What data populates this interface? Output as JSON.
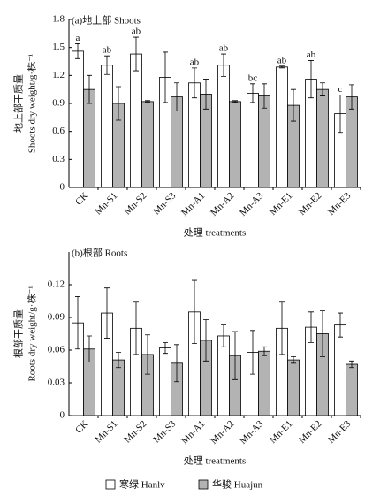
{
  "chart_data": [
    {
      "type": "bar",
      "title": "(a)地上部 Shoots",
      "ylabel": [
        "地上部干质量",
        "Shoots dry weight/g·株⁻¹"
      ],
      "xlabel": "处理 treatments",
      "categories": [
        "CK",
        "Mn-S1",
        "Mn-S2",
        "Mn-S3",
        "Mn-A1",
        "Mn-A2",
        "Mn-A3",
        "Mn-E1",
        "Mn-E2",
        "Mn-E3"
      ],
      "ylim": [
        0,
        1.8
      ],
      "yticks": [
        0,
        0.3,
        0.6,
        0.9,
        1.2,
        1.5,
        1.8
      ],
      "letters": [
        "a",
        "ab",
        "ab",
        null,
        "ab",
        "ab",
        "bc",
        "ab",
        "ab",
        "c"
      ],
      "series": [
        {
          "color": "#ffffff",
          "values": [
            1.46,
            1.31,
            1.43,
            1.18,
            1.12,
            1.31,
            1.01,
            1.29,
            1.16,
            0.79
          ],
          "errors": [
            0.08,
            0.1,
            0.18,
            0.27,
            0.16,
            0.12,
            0.1,
            0.01,
            0.2,
            0.2
          ]
        },
        {
          "color": "#b3b3b3",
          "values": [
            1.05,
            0.9,
            0.92,
            0.97,
            1.0,
            0.92,
            0.98,
            0.88,
            1.05,
            0.97
          ],
          "errors": [
            0.15,
            0.18,
            0.01,
            0.15,
            0.16,
            0.01,
            0.13,
            0.17,
            0.07,
            0.13
          ]
        }
      ]
    },
    {
      "type": "bar",
      "title": "(b)根部 Roots",
      "ylabel": [
        "根部干质量",
        "Roots dry weight/g·株⁻¹"
      ],
      "xlabel": "处理 treatments",
      "categories": [
        "CK",
        "Mn-S1",
        "Mn-S2",
        "Mn-S3",
        "Mn-A1",
        "Mn-A2",
        "Mn-A3",
        "Mn-E1",
        "Mn-E2",
        "Mn-E3"
      ],
      "ylim": [
        0,
        0.15
      ],
      "yticks": [
        0,
        0.03,
        0.06,
        0.09,
        0.12
      ],
      "series": [
        {
          "color": "#ffffff",
          "values": [
            0.085,
            0.094,
            0.08,
            0.062,
            0.095,
            0.073,
            0.058,
            0.08,
            0.081,
            0.083
          ],
          "errors": [
            0.024,
            0.023,
            0.024,
            0.005,
            0.029,
            0.01,
            0.02,
            0.024,
            0.014,
            0.011
          ]
        },
        {
          "color": "#b3b3b3",
          "values": [
            0.061,
            0.051,
            0.056,
            0.048,
            0.069,
            0.055,
            0.059,
            0.051,
            0.075,
            0.047
          ],
          "errors": [
            0.012,
            0.007,
            0.018,
            0.017,
            0.019,
            0.022,
            0.004,
            0.003,
            0.021,
            0.003
          ]
        }
      ]
    }
  ],
  "legend": {
    "items": [
      "寒绿 Hanlv",
      "华骏 Huajun"
    ]
  }
}
